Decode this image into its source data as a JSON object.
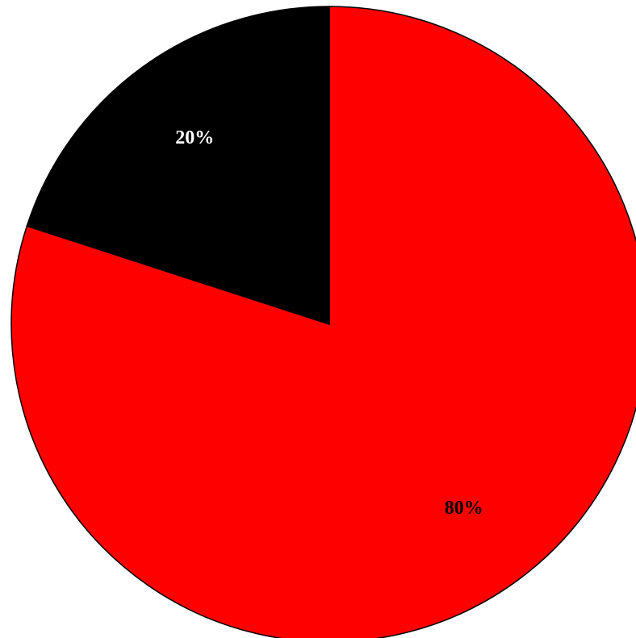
{
  "chart_data": {
    "type": "pie",
    "values": [
      80,
      20
    ],
    "value_labels": [
      "80%",
      "20%"
    ],
    "colors": [
      "#ff0000",
      "#000000"
    ],
    "label_colors": [
      "#000000",
      "#ffffff"
    ]
  }
}
